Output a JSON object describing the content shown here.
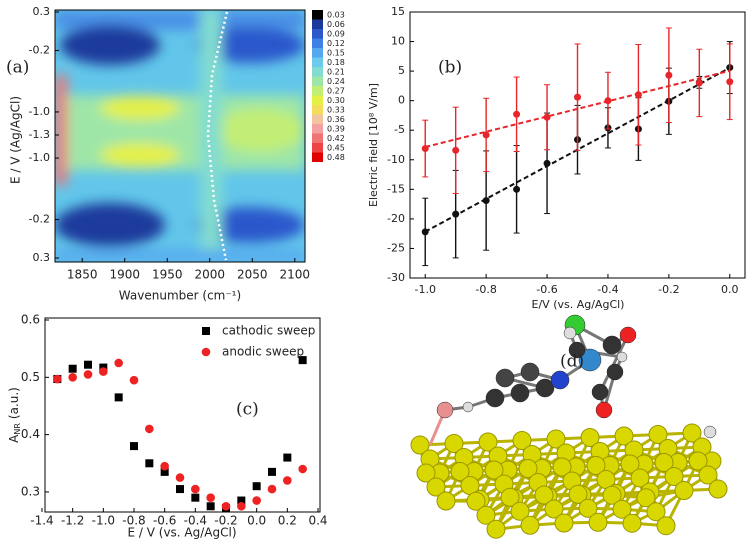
{
  "chart_data": [
    {
      "type": "contour",
      "panel_label": "(a)",
      "xlabel": "Wavenumber (cm⁻¹)",
      "ylabel": "E / V (Ag/AgCl)",
      "xlim": [
        1818,
        2112
      ],
      "xticks": [
        1850,
        1900,
        1950,
        2000,
        2050,
        2100
      ],
      "yticks": [
        0.3,
        -0.2,
        {
          "value": -1.0,
          "label": "-1.0"
        },
        -1.3,
        {
          "value": -1.0,
          "label": "-1.0"
        },
        -0.2,
        0.3
      ],
      "colorbar": {
        "ticks": [
          0.03,
          0.06,
          0.09,
          0.12,
          0.15,
          0.18,
          0.21,
          0.24,
          0.27,
          {
            "value": 0.3,
            "label": "0.30"
          },
          0.33,
          0.36,
          0.39,
          0.42,
          0.45,
          0.48
        ],
        "colors": [
          "#000000",
          "#1b3a9c",
          "#2c58cc",
          "#3f80e6",
          "#55a8f0",
          "#6ccbec",
          "#82dcd0",
          "#9ee6a8",
          "#c2ee74",
          "#e4f046",
          "#f2de5a",
          "#f2c4a0",
          "#f2a0a0",
          "#f07474",
          "#ee4444",
          "#e00000"
        ]
      }
    },
    {
      "type": "errorbar",
      "panel_label": "(b)",
      "xlabel": "E/V (vs. Ag/AgCl)",
      "ylabel": "Electric field [10⁸ V/m]",
      "xlim": [
        -1.05,
        0.05
      ],
      "ylim": [
        -30,
        15
      ],
      "xticks": [
        {
          "value": -1.0,
          "label": "-1.0"
        },
        -0.8,
        -0.6,
        -0.4,
        -0.2,
        {
          "value": 0.0,
          "label": "0.0"
        }
      ],
      "yticks": [
        -30,
        -25,
        -20,
        -15,
        -10,
        -5,
        0,
        5,
        10,
        15
      ],
      "x": [
        -1.0,
        -0.9,
        -0.8,
        -0.7,
        -0.6,
        -0.5,
        -0.4,
        -0.3,
        -0.2,
        -0.1,
        0.0
      ],
      "series": [
        {
          "color": "#111111",
          "values": [
            -22.2,
            -19.2,
            -16.9,
            -15.0,
            -10.6,
            -6.6,
            -4.6,
            -4.8,
            -0.1,
            3.1,
            5.6
          ],
          "errors": [
            5.7,
            7.4,
            8.4,
            7.4,
            8.5,
            5.8,
            3.4,
            5.3,
            5.6,
            1.0,
            4.4
          ]
        },
        {
          "color": "#e8262a",
          "values": [
            -8.1,
            -8.4,
            -5.8,
            -2.3,
            -2.8,
            0.6,
            0.0,
            1.0,
            4.3,
            3.0,
            3.2
          ],
          "errors": [
            4.8,
            7.3,
            6.2,
            6.3,
            5.5,
            9.0,
            4.8,
            8.5,
            8.0,
            5.7,
            6.4
          ]
        }
      ]
    },
    {
      "type": "scatter",
      "panel_label": "(c)",
      "xlabel": "E / V (vs. Ag/AgCl)",
      "ylabel": {
        "main": "A",
        "sub": "NR",
        "rest": "(a.u.)"
      },
      "xlim": [
        -1.4,
        0.4
      ],
      "ylim": [
        0.265,
        0.6
      ],
      "xticks": [
        -1.4,
        -1.2,
        {
          "value": -1.0,
          "label": "-1.0"
        },
        -0.8,
        -0.6,
        -0.4,
        -0.2,
        {
          "value": 0.0,
          "label": "0.0"
        },
        0.2,
        0.4
      ],
      "yticks": [
        0.3,
        0.4,
        0.5,
        0.6
      ],
      "x": [
        -1.3,
        -1.2,
        -1.1,
        -1.0,
        -0.9,
        -0.8,
        -0.7,
        -0.6,
        -0.5,
        -0.4,
        -0.3,
        -0.2,
        -0.1,
        0.0,
        0.1,
        0.2,
        0.3
      ],
      "series": [
        {
          "name": "cathodic sweep",
          "color": "#000000",
          "marker": "square",
          "values": [
            0.497,
            0.515,
            0.522,
            0.517,
            0.465,
            0.38,
            0.35,
            0.335,
            0.305,
            0.29,
            0.275,
            0.272,
            0.285,
            0.31,
            0.335,
            0.36,
            0.53
          ]
        },
        {
          "name": "anodic sweep",
          "color": "#ee2222",
          "marker": "circle",
          "values": [
            0.497,
            0.5,
            0.505,
            0.51,
            0.525,
            0.495,
            0.41,
            0.345,
            0.325,
            0.305,
            0.29,
            0.275,
            0.275,
            0.285,
            0.305,
            0.32,
            0.34
          ]
        }
      ]
    }
  ],
  "image_panel": {
    "label": "(d)"
  }
}
